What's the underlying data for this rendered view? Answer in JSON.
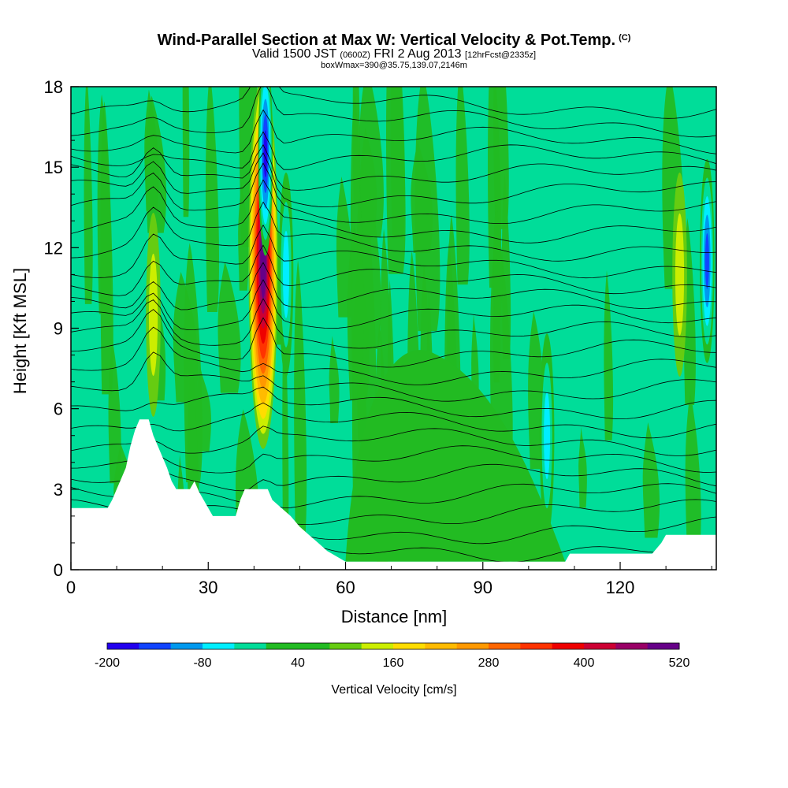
{
  "header": {
    "title": "Wind-Parallel Section at Max W: Vertical Velocity & Pot.Temp.",
    "copyright": "(C)",
    "valid_prefix": "Valid 1500 JST",
    "utc_time": "(0600Z)",
    "valid_date": "FRI 2 Aug 2013",
    "forecast": "[12hrFcst@2335z]",
    "box_info": "boxWmax=390@35.75,139.07,2146m"
  },
  "colors": {
    "background_field": "#00dd99",
    "green_field": "#22bb22",
    "terrain": "#ffffff",
    "contour": "#000000",
    "scale": [
      "#2200ee",
      "#1144ff",
      "#0099ee",
      "#00eeff",
      "#00dd99",
      "#22bb22",
      "#22bb22",
      "#66cc11",
      "#ccee00",
      "#ffdd00",
      "#ffbb00",
      "#ff9900",
      "#ff6600",
      "#ff3300",
      "#ee0000",
      "#cc0033",
      "#990066",
      "#660088"
    ]
  },
  "chart_data": {
    "type": "heatmap",
    "title": "Wind-Parallel Section at Max W: Vertical Velocity & Pot.Temp.",
    "xlabel": "Distance [nm]",
    "ylabel": "Height [Kft MSL]",
    "xlim": [
      0,
      141
    ],
    "ylim": [
      0,
      18
    ],
    "x_ticks": [
      0,
      30,
      60,
      90,
      120
    ],
    "y_ticks": [
      0,
      3,
      6,
      9,
      12,
      15,
      18
    ],
    "colorbar": {
      "title": "Vertical Velocity [cm/s]",
      "labels": [
        "-200",
        "-80",
        "40",
        "160",
        "280",
        "400",
        "520"
      ],
      "min": -200,
      "max": 520,
      "step": 40
    },
    "terrain_height": [
      [
        0,
        2.3
      ],
      [
        8,
        2.3
      ],
      [
        9,
        2.6
      ],
      [
        10,
        3.0
      ],
      [
        11,
        3.4
      ],
      [
        12,
        3.8
      ],
      [
        13,
        4.6
      ],
      [
        14,
        5.2
      ],
      [
        15,
        5.6
      ],
      [
        17,
        5.6
      ],
      [
        18,
        5.0
      ],
      [
        19,
        4.6
      ],
      [
        20,
        4.2
      ],
      [
        21,
        3.8
      ],
      [
        22,
        3.3
      ],
      [
        23,
        3.0
      ],
      [
        26,
        3.0
      ],
      [
        27,
        3.3
      ],
      [
        28,
        2.9
      ],
      [
        30,
        2.3
      ],
      [
        31,
        2.0
      ],
      [
        36,
        2.0
      ],
      [
        37,
        2.6
      ],
      [
        38,
        3.0
      ],
      [
        43,
        3.0
      ],
      [
        44,
        2.6
      ],
      [
        46,
        2.3
      ],
      [
        48,
        2.0
      ],
      [
        50,
        1.6
      ],
      [
        52,
        1.3
      ],
      [
        54,
        1.0
      ],
      [
        56,
        0.7
      ],
      [
        58,
        0.5
      ],
      [
        60,
        0.3
      ],
      [
        108,
        0.3
      ],
      [
        109,
        0.6
      ],
      [
        127,
        0.6
      ],
      [
        129,
        1.0
      ],
      [
        130,
        1.3
      ],
      [
        141,
        1.3
      ]
    ],
    "updraft_cells": [
      {
        "x": 42,
        "y": 11.5,
        "peak": 520
      },
      {
        "x": 18,
        "y": 9.5,
        "peak": 120
      },
      {
        "x": 133,
        "y": 11.0,
        "peak": 120
      }
    ],
    "downdraft_cells": [
      {
        "x": 42.5,
        "y": 15.5,
        "peak": -200
      },
      {
        "x": 139,
        "y": 11.5,
        "peak": -160
      },
      {
        "x": 104,
        "y": 5.0,
        "peak": -80
      },
      {
        "x": 47,
        "y": 11.0,
        "peak": -80
      }
    ]
  }
}
